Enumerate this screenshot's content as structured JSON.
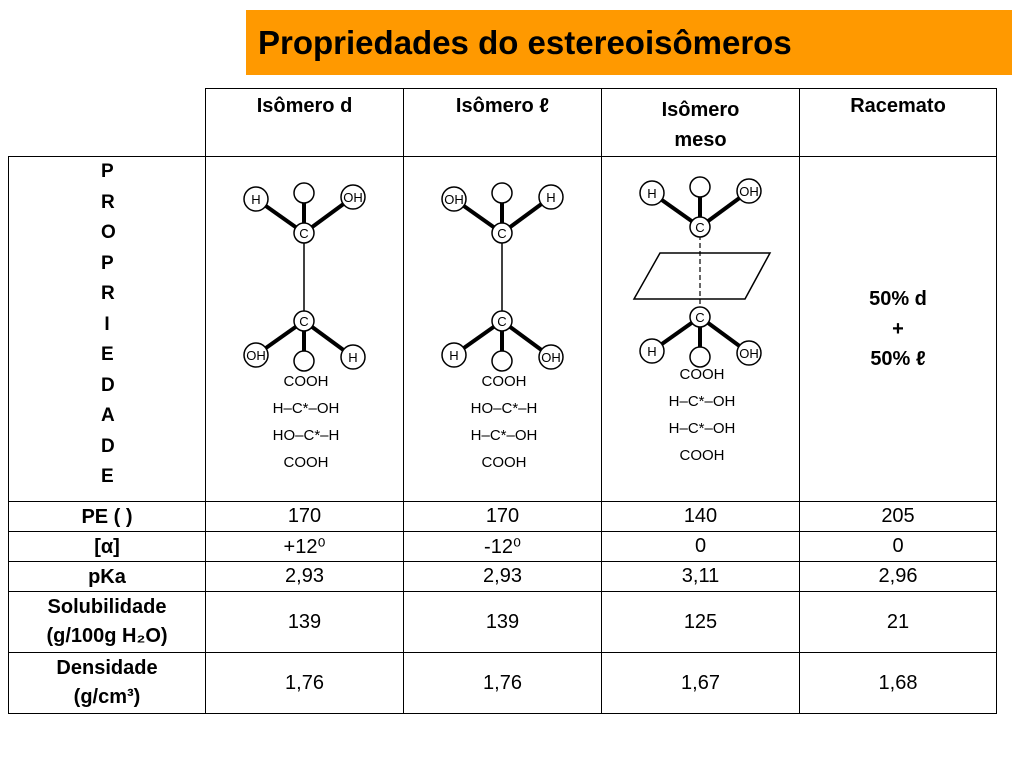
{
  "header": {
    "title": "Propriedades do estereoisômeros"
  },
  "table": {
    "corner": "PROPRIEDADE",
    "columns": [
      "Isômero d",
      "Isômero ℓ",
      "Isômero meso",
      "Racemato"
    ],
    "molecules": [
      {
        "carbon": "C",
        "top": [
          "H",
          "OH"
        ],
        "bottom": [
          "OH",
          "H"
        ],
        "fischer": [
          "COOH",
          "H–C*–OH",
          "HO–C*–H",
          "COOH"
        ]
      },
      {
        "carbon": "C",
        "top": [
          "OH",
          "H"
        ],
        "bottom": [
          "H",
          "OH"
        ],
        "fischer": [
          "COOH",
          "HO–C*–H",
          "H–C*–OH",
          "COOH"
        ]
      },
      {
        "carbon": "C",
        "top": [
          "H",
          "OH"
        ],
        "bottom": [
          "H",
          "OH"
        ],
        "fischer": [
          "COOH",
          "H–C*–OH",
          "H–C*–OH",
          "COOH"
        ]
      }
    ],
    "racemate": [
      "50% d",
      "+",
      "50% ℓ"
    ],
    "rows": [
      {
        "label": [
          "PE ( )"
        ],
        "values": [
          "170",
          "170",
          "140",
          "205"
        ]
      },
      {
        "label": [
          "[α]"
        ],
        "values": [
          "+12⁰",
          "-12⁰",
          "0",
          "0"
        ]
      },
      {
        "label": [
          "pKa"
        ],
        "values": [
          "2,93",
          "2,93",
          "3,11",
          "2,96"
        ]
      },
      {
        "label": [
          "Solubilidade",
          "(g/100g H₂O)"
        ],
        "values": [
          "139",
          "139",
          "125",
          "21"
        ]
      },
      {
        "label": [
          "Densidade",
          "(g/cm³)"
        ],
        "values": [
          "1,76",
          "1,76",
          "1,67",
          "1,68"
        ]
      }
    ]
  }
}
